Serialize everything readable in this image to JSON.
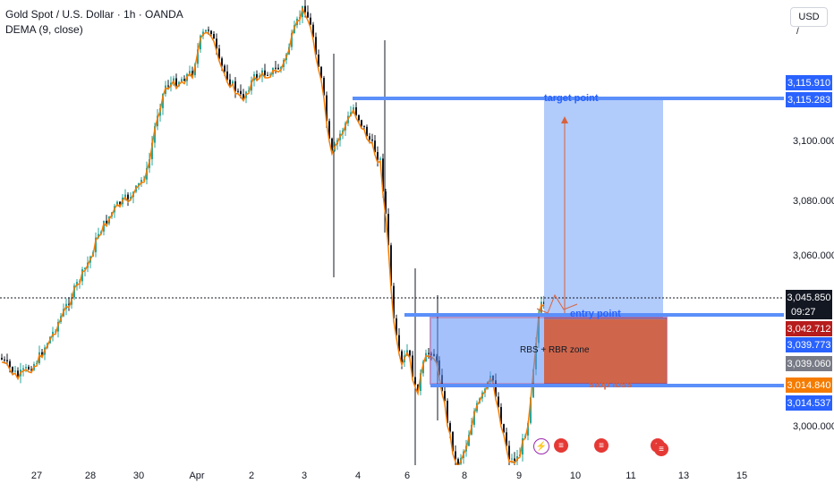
{
  "legend": {
    "title": "Gold Spot / U.S. Dollar · 1h · OANDA",
    "indicator": "DEMA (9, close)"
  },
  "currency_button": "USD",
  "price_ticks": [
    "3,100.000",
    "3,080.000",
    "3,060.000",
    "3,000.000"
  ],
  "badges": {
    "target_a": "3,115.910",
    "target_b": "3,115.283",
    "current_price": "3,045.850",
    "countdown": "09:27",
    "price_2": "3,042.712",
    "price_3": "3,039.773",
    "price_4": "3,039.060",
    "stop_a": "3,014.840",
    "stop_b": "3,014.537"
  },
  "time_ticks": [
    "27",
    "28",
    "30",
    "Apr",
    "2",
    "3",
    "4",
    "6",
    "8",
    "9",
    "10",
    "11",
    "13",
    "15"
  ],
  "annotations": {
    "target": "target point",
    "entry": "entry point",
    "stop": "stop loss",
    "zone": "RBS + RBR zone"
  },
  "colors": {
    "up": "#26a69a",
    "down": "#131722",
    "dema": "#f57c00",
    "target_zone": "#a9c5fb",
    "stop_zone": "#d9623b",
    "rbs_zone": "#5b8ff9",
    "level_line": "#5b8ff9",
    "badge_blue": "#2962ff",
    "badge_red": "#b71c1c",
    "badge_gray": "#787b86",
    "badge_orange": "#f57c00",
    "badge_black": "#131722"
  },
  "event_icons": [
    "lightning-icon",
    "us-flag-icon",
    "us-flag-icon",
    "us-flag-icon",
    "us-flag-icon"
  ]
}
